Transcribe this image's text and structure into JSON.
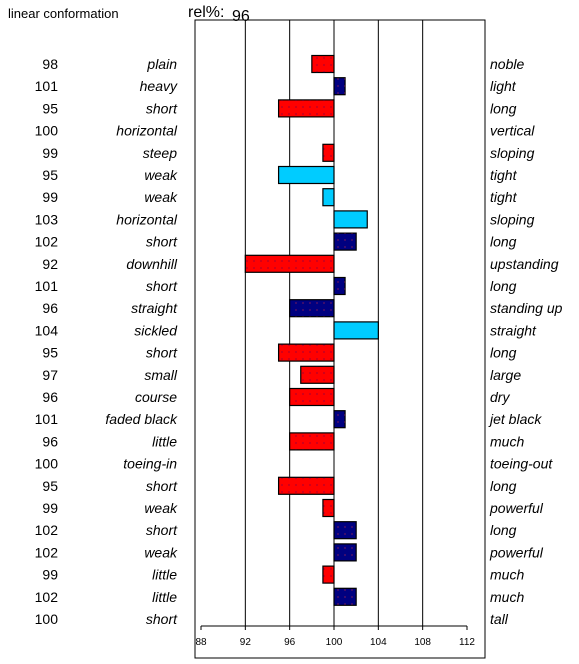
{
  "header": {
    "title": "linear conformation",
    "rel_label": "rel%:",
    "rel_value": "96"
  },
  "chart_data": {
    "type": "bar",
    "baseline": 100,
    "xlim": [
      88,
      112
    ],
    "xticks": [
      88,
      92,
      96,
      100,
      104,
      108,
      112
    ],
    "grid": true,
    "traits": [
      {
        "value": 98,
        "left": "plain",
        "right": "noble",
        "color": "#ff0000"
      },
      {
        "value": 101,
        "left": "heavy",
        "right": "light",
        "color": "#000080"
      },
      {
        "value": 95,
        "left": "short",
        "right": "long",
        "color": "#ff0000"
      },
      {
        "value": 100,
        "left": "horizontal",
        "right": "vertical",
        "color": "#ff0000"
      },
      {
        "value": 99,
        "left": "steep",
        "right": "sloping",
        "color": "#ff0000"
      },
      {
        "value": 95,
        "left": "weak",
        "right": "tight",
        "color": "#00ccff"
      },
      {
        "value": 99,
        "left": "weak",
        "right": "tight",
        "color": "#00ccff"
      },
      {
        "value": 103,
        "left": "horizontal",
        "right": "sloping",
        "color": "#00ccff"
      },
      {
        "value": 102,
        "left": "short",
        "right": "long",
        "color": "#000080"
      },
      {
        "value": 92,
        "left": "downhill",
        "right": "upstanding",
        "color": "#ff0000"
      },
      {
        "value": 101,
        "left": "short",
        "right": "long",
        "color": "#000080"
      },
      {
        "value": 96,
        "left": "straight",
        "right": "standing up",
        "color": "#000080"
      },
      {
        "value": 104,
        "left": "sickled",
        "right": "straight",
        "color": "#00ccff"
      },
      {
        "value": 95,
        "left": "short",
        "right": "long",
        "color": "#ff0000"
      },
      {
        "value": 97,
        "left": "small",
        "right": "large",
        "color": "#ff0000"
      },
      {
        "value": 96,
        "left": "course",
        "right": "dry",
        "color": "#ff0000"
      },
      {
        "value": 101,
        "left": "faded black",
        "right": "jet black",
        "color": "#000080"
      },
      {
        "value": 96,
        "left": "little",
        "right": "much",
        "color": "#ff0000"
      },
      {
        "value": 100,
        "left": "toeing-in",
        "right": "toeing-out",
        "color": "#ff0000"
      },
      {
        "value": 95,
        "left": "short",
        "right": "long",
        "color": "#ff0000"
      },
      {
        "value": 99,
        "left": "weak",
        "right": "powerful",
        "color": "#ff0000"
      },
      {
        "value": 102,
        "left": "short",
        "right": "long",
        "color": "#000080"
      },
      {
        "value": 102,
        "left": "weak",
        "right": "powerful",
        "color": "#000080"
      },
      {
        "value": 99,
        "left": "little",
        "right": "much",
        "color": "#ff0000"
      },
      {
        "value": 102,
        "left": "little",
        "right": "much",
        "color": "#000080"
      },
      {
        "value": 100,
        "left": "short",
        "right": "tall",
        "color": "#ff0000"
      }
    ]
  }
}
